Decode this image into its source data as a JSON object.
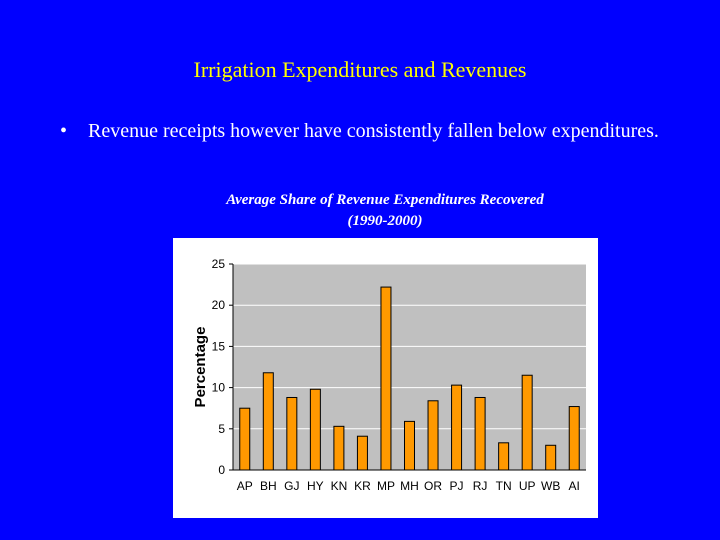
{
  "slide": {
    "title": "Irrigation Expenditures and Revenues",
    "bullet_symbol": "•",
    "bullet_text": "Revenue receipts however have consistently fallen below expenditures.",
    "chart_caption_line1": "Average Share of Revenue Expenditures Recovered",
    "chart_caption_line2": "(1990-2000)"
  },
  "colors": {
    "background": "#0000ff",
    "title": "#ffff00",
    "text": "#ffffff",
    "plot_area": "#c0c0c0",
    "bar_fill": "#ff9900",
    "bar_stroke": "#000000"
  },
  "chart_data": {
    "type": "bar",
    "title": "Average Share of Revenue Expenditures Recovered (1990-2000)",
    "xlabel": "",
    "ylabel": "Percentage",
    "ylim": [
      0,
      25
    ],
    "yticks": [
      0,
      5,
      10,
      15,
      20,
      25
    ],
    "grid": true,
    "legend": "none",
    "categories": [
      "AP",
      "BH",
      "GJ",
      "HY",
      "KN",
      "KR",
      "MP",
      "MH",
      "OR",
      "PJ",
      "RJ",
      "TN",
      "UP",
      "WB",
      "AI"
    ],
    "values": [
      7.5,
      11.8,
      8.8,
      9.8,
      5.3,
      4.1,
      22.2,
      5.9,
      8.4,
      10.3,
      8.8,
      3.3,
      11.5,
      3.0,
      7.7
    ]
  }
}
